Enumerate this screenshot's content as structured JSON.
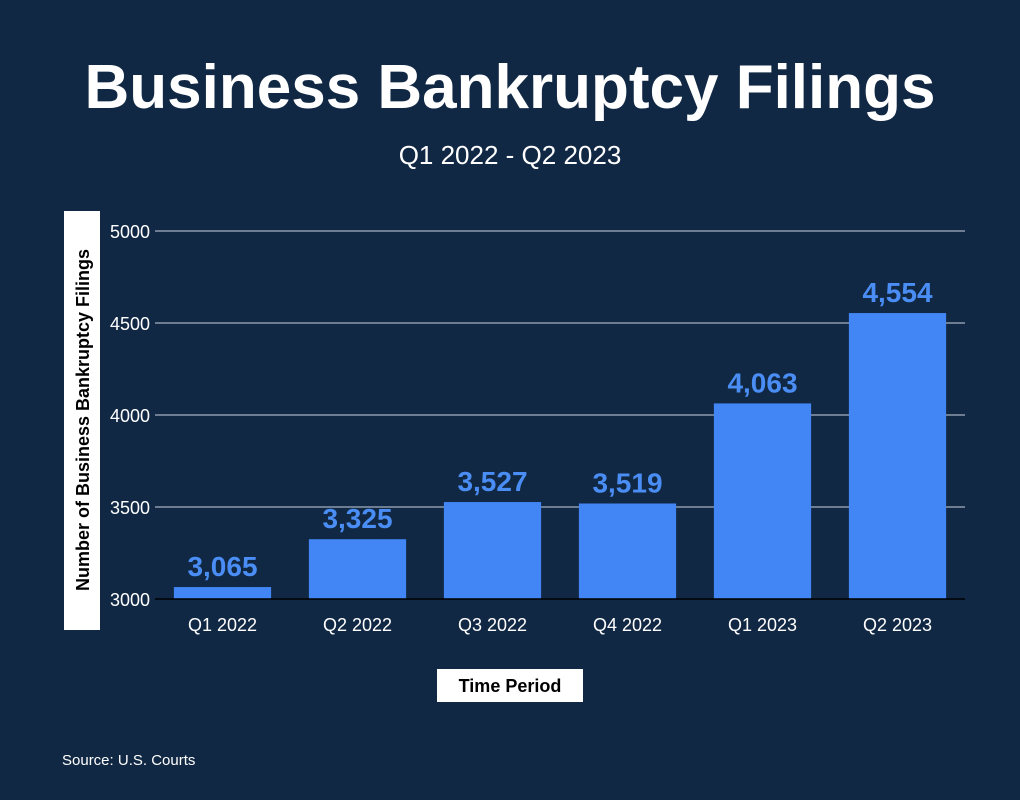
{
  "colors": {
    "background": "#112844",
    "bar": "#4285f4",
    "data_label": "#4a8ef5",
    "grid": "#c9d3e0",
    "text": "#ffffff",
    "label_box": "#ffffff",
    "label_text": "#000000"
  },
  "source": "Source: U.S. Courts",
  "chart_data": {
    "type": "bar",
    "title": "Business Bankruptcy Filings",
    "subtitle": "Q1 2022 - Q2 2023",
    "xlabel": "Time Period",
    "ylabel": "Number of Business Bankruptcy Filings",
    "categories": [
      "Q1 2022",
      "Q2 2022",
      "Q3 2022",
      "Q4 2022",
      "Q1 2023",
      "Q2 2023"
    ],
    "values": [
      3065,
      3325,
      3527,
      3519,
      4063,
      4554
    ],
    "data_labels": [
      "3,065",
      "3,325",
      "3,527",
      "3,519",
      "4,063",
      "4,554"
    ],
    "ylim": [
      3000,
      5000
    ],
    "yticks": [
      "3000",
      "3500",
      "4000",
      "4500",
      "5000"
    ],
    "grid": true,
    "legend": "none"
  }
}
